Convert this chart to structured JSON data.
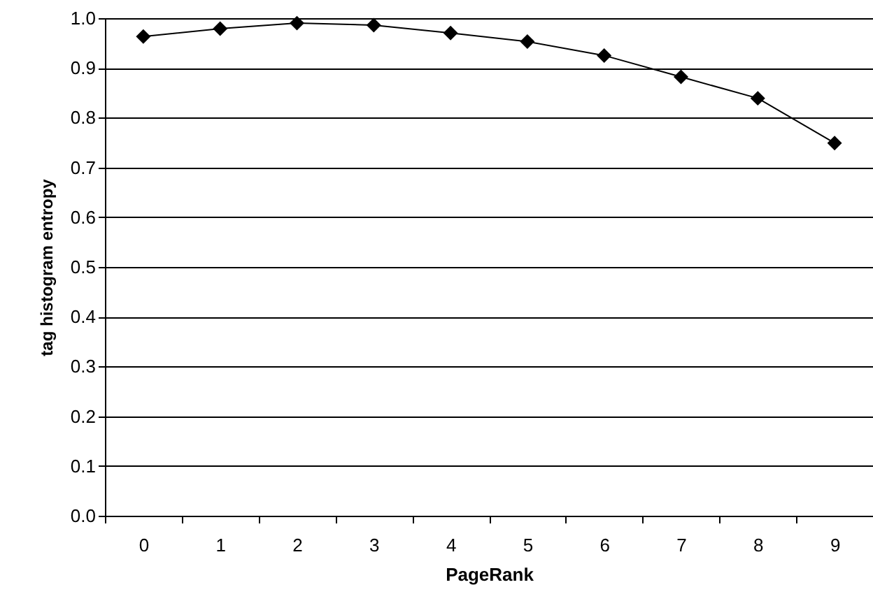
{
  "chart_data": {
    "type": "line",
    "xlabel": "PageRank",
    "ylabel": "tag histogram entropy",
    "categories": [
      "0",
      "1",
      "2",
      "3",
      "4",
      "5",
      "6",
      "7",
      "8",
      "9"
    ],
    "series": [
      {
        "color": "#000000",
        "values": [
          0.963,
          0.979,
          0.99,
          0.986,
          0.97,
          0.953,
          0.925,
          0.882,
          0.839,
          0.749
        ]
      }
    ],
    "ylim": [
      0,
      1
    ],
    "yticks": [
      {
        "value": 0,
        "label": "0.0"
      },
      {
        "value": 0.1,
        "label": "0.1"
      },
      {
        "value": 0.2,
        "label": "0.2"
      },
      {
        "value": 0.3,
        "label": "0.3"
      },
      {
        "value": 0.4,
        "label": "0.4"
      },
      {
        "value": 0.5,
        "label": "0.5"
      },
      {
        "value": 0.6,
        "label": "0.6"
      },
      {
        "value": 0.7,
        "label": "0.7"
      },
      {
        "value": 0.8,
        "label": "0.8"
      },
      {
        "value": 0.9,
        "label": "0.9"
      },
      {
        "value": 1,
        "label": "1.0"
      }
    ],
    "grid": "y",
    "marker": "diamond",
    "line_style": "solid"
  }
}
